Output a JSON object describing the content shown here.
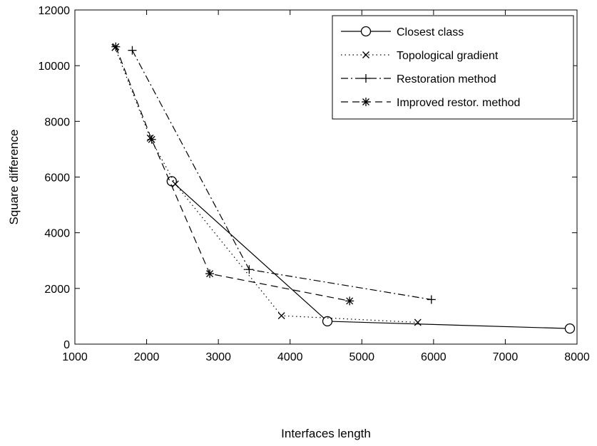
{
  "chart_data": {
    "type": "line",
    "xlabel": "Interfaces length",
    "ylabel": "Square difference",
    "xlim": [
      1000,
      8000
    ],
    "ylim": [
      0,
      12000
    ],
    "xticks": [
      1000,
      2000,
      3000,
      4000,
      5000,
      6000,
      7000,
      8000
    ],
    "yticks": [
      0,
      2000,
      4000,
      6000,
      8000,
      10000,
      12000
    ],
    "grid": false,
    "legend_position": "top-right",
    "series": [
      {
        "name": "Closest class",
        "line_style": "solid",
        "marker": "circle",
        "color": "#000000",
        "x": [
          2350,
          4520,
          7900
        ],
        "y": [
          5850,
          820,
          560
        ]
      },
      {
        "name": "Topological gradient",
        "line_style": "dotted",
        "marker": "x",
        "color": "#000000",
        "x": [
          1560,
          2050,
          2400,
          3880,
          5780
        ],
        "y": [
          10650,
          7400,
          5750,
          1020,
          780
        ]
      },
      {
        "name": "Restoration method",
        "line_style": "dashdot",
        "marker": "plus",
        "color": "#000000",
        "x": [
          1800,
          3430,
          5970
        ],
        "y": [
          10550,
          2680,
          1600
        ]
      },
      {
        "name": "Improved restor. method",
        "line_style": "dashed",
        "marker": "star",
        "color": "#000000",
        "x": [
          1570,
          2070,
          2880,
          4830
        ],
        "y": [
          10680,
          7350,
          2530,
          1550
        ]
      }
    ]
  }
}
